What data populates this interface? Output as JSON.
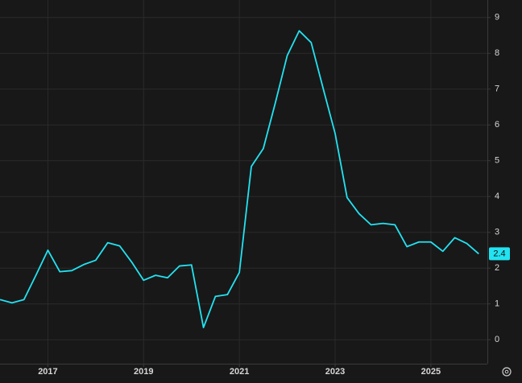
{
  "chart_data": {
    "type": "line",
    "color": "#22e3f2",
    "x": [
      2016,
      2016.25,
      2016.5,
      2016.75,
      2017,
      2017.25,
      2017.5,
      2017.75,
      2018,
      2018.25,
      2018.5,
      2018.75,
      2019,
      2019.25,
      2019.5,
      2019.75,
      2020,
      2020.25,
      2020.5,
      2020.75,
      2021,
      2021.25,
      2021.5,
      2021.75,
      2022,
      2022.25,
      2022.5,
      2022.75,
      2023,
      2023.25,
      2023.5,
      2023.75,
      2024,
      2024.25,
      2024.5,
      2024.75,
      2025,
      2025.25,
      2025.5,
      2025.75,
      2026
    ],
    "values": [
      1.12,
      1.03,
      1.12,
      1.8,
      2.5,
      1.9,
      1.93,
      2.1,
      2.22,
      2.71,
      2.62,
      2.17,
      1.66,
      1.8,
      1.73,
      2.06,
      2.09,
      0.34,
      1.21,
      1.26,
      1.88,
      4.84,
      5.34,
      6.61,
      7.94,
      8.63,
      8.3,
      7.02,
      5.76,
      3.97,
      3.52,
      3.21,
      3.25,
      3.21,
      2.6,
      2.73,
      2.73,
      2.47,
      2.85,
      2.69,
      2.4
    ],
    "xlim": [
      2016,
      2026.18
    ],
    "xticks": [
      2017,
      2019,
      2021,
      2023,
      2025
    ],
    "ylim": [
      -0.67,
      9.49
    ],
    "yticks": [
      0,
      1,
      2,
      3,
      4,
      5,
      6,
      7,
      8,
      9
    ],
    "grid": true
  }
}
